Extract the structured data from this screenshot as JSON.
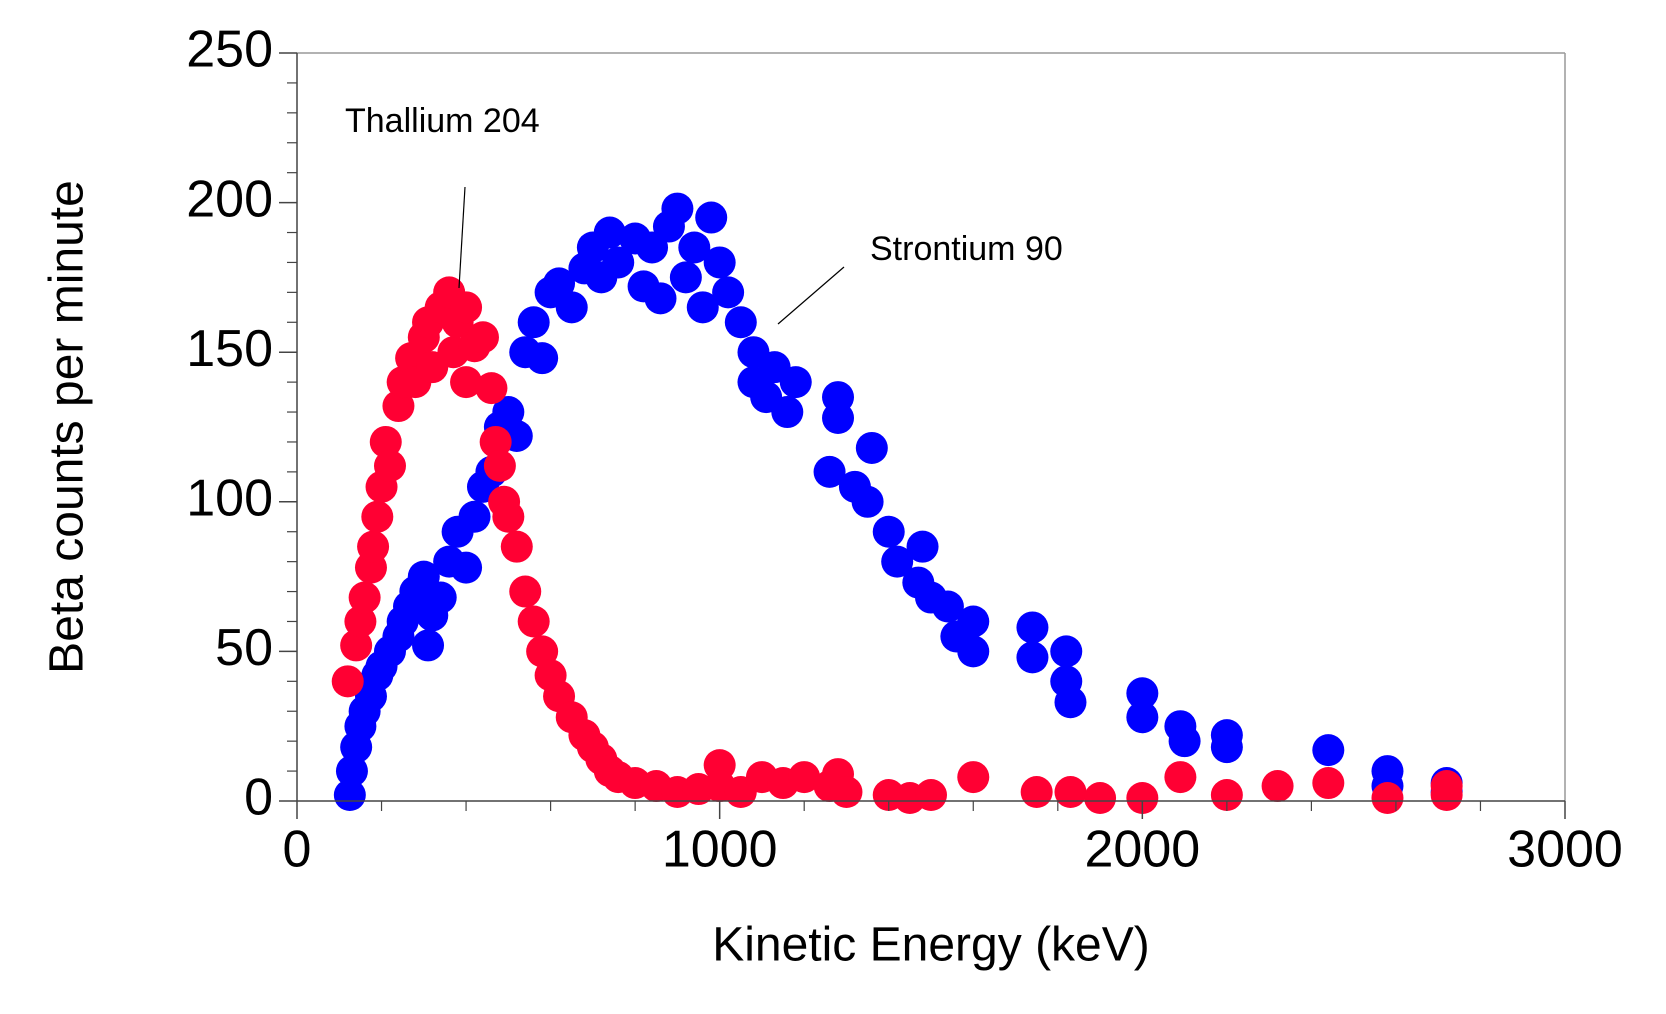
{
  "chart_data": {
    "type": "scatter",
    "xlabel": "Kinetic Energy (keV)",
    "ylabel": "Beta counts per minute",
    "xlim": [
      0,
      3000
    ],
    "ylim": [
      0,
      250
    ],
    "xticks": [
      0,
      1000,
      2000,
      3000
    ],
    "yticks": [
      0,
      50,
      100,
      150,
      200,
      250
    ],
    "xminorticks": [
      200,
      400,
      600,
      800,
      1200,
      1400,
      1600,
      1800,
      2200,
      2400,
      2600,
      2800
    ],
    "yminorticks": [
      10,
      20,
      30,
      40,
      60,
      70,
      80,
      90,
      110,
      120,
      130,
      140,
      160,
      170,
      180,
      190,
      210,
      220,
      230,
      240
    ],
    "grid": false,
    "series": [
      {
        "name": "Strontium 90",
        "color": "#0000ff",
        "x": [
          125,
          130,
          140,
          150,
          160,
          175,
          190,
          200,
          220,
          240,
          250,
          265,
          280,
          300,
          310,
          320,
          340,
          360,
          380,
          400,
          420,
          440,
          460,
          480,
          500,
          520,
          540,
          560,
          580,
          600,
          620,
          650,
          680,
          700,
          720,
          740,
          760,
          800,
          820,
          840,
          860,
          880,
          900,
          920,
          940,
          960,
          980,
          1000,
          1020,
          1050,
          1080,
          1080,
          1110,
          1130,
          1160,
          1180,
          1280,
          1280,
          1260,
          1320,
          1360,
          1350,
          1400,
          1420,
          1480,
          1470,
          1500,
          1540,
          1560,
          1600,
          1600,
          1740,
          1740,
          1820,
          1820,
          1830,
          2000,
          2000,
          2090,
          2100,
          2200,
          2200,
          2440,
          2580,
          2580,
          2720,
          2720
        ],
        "values": [
          2,
          10,
          18,
          25,
          30,
          35,
          42,
          45,
          50,
          55,
          60,
          65,
          70,
          75,
          52,
          62,
          68,
          80,
          90,
          78,
          95,
          105,
          110,
          125,
          130,
          122,
          150,
          160,
          148,
          170,
          173,
          165,
          178,
          185,
          175,
          190,
          180,
          188,
          172,
          185,
          168,
          192,
          198,
          175,
          185,
          165,
          195,
          180,
          170,
          160,
          150,
          140,
          135,
          145,
          130,
          140,
          128,
          135,
          110,
          105,
          118,
          100,
          90,
          80,
          85,
          73,
          68,
          65,
          55,
          60,
          50,
          58,
          48,
          50,
          40,
          33,
          36,
          28,
          25,
          20,
          22,
          18,
          17,
          10,
          5,
          6,
          3
        ]
      },
      {
        "name": "Thallium 204",
        "color": "#ff0033",
        "x": [
          120,
          140,
          150,
          160,
          175,
          180,
          190,
          200,
          210,
          220,
          240,
          250,
          270,
          280,
          300,
          310,
          320,
          340,
          360,
          370,
          380,
          400,
          400,
          420,
          440,
          460,
          470,
          480,
          490,
          500,
          520,
          540,
          560,
          580,
          600,
          620,
          650,
          680,
          700,
          720,
          740,
          760,
          800,
          850,
          900,
          950,
          1000,
          1000,
          1050,
          1100,
          1150,
          1200,
          1260,
          1280,
          1300,
          1400,
          1450,
          1500,
          1600,
          1750,
          1830,
          1900,
          2000,
          2090,
          2200,
          2320,
          2440,
          2580,
          2720,
          2720
        ],
        "values": [
          40,
          52,
          60,
          68,
          78,
          85,
          95,
          105,
          120,
          112,
          132,
          140,
          148,
          140,
          155,
          160,
          145,
          165,
          170,
          150,
          160,
          165,
          140,
          152,
          155,
          138,
          120,
          112,
          100,
          95,
          85,
          70,
          60,
          50,
          42,
          35,
          28,
          22,
          18,
          14,
          10,
          8,
          6,
          5,
          3,
          4,
          12,
          5,
          3,
          8,
          6,
          8,
          5,
          9,
          3,
          2,
          1,
          2,
          8,
          3,
          3,
          1,
          1,
          8,
          2,
          5,
          6,
          1,
          5,
          2
        ]
      }
    ]
  }
}
